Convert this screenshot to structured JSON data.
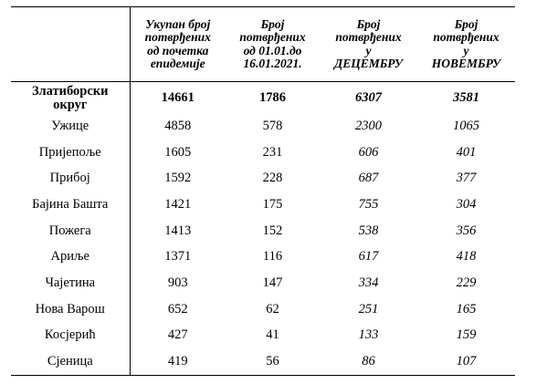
{
  "table": {
    "headers": [
      "",
      [
        "Укупан број",
        "потврђених",
        "од почетка",
        "епидемије"
      ],
      [
        "Број",
        "потврђених",
        "од 01.01.до",
        "16.01.2021."
      ],
      [
        "Број",
        "потврђених",
        "у",
        "ДЕЦЕМБРУ"
      ],
      [
        "Број",
        "потврђених",
        "у",
        "НОВЕМБРУ"
      ]
    ],
    "total": {
      "region_lines": [
        "Златиборски",
        "округ"
      ],
      "since_start": "14661",
      "jan_1_16": "1786",
      "december": "6307",
      "november": "3581"
    },
    "rows": [
      {
        "region": "Ужице",
        "since_start": "4858",
        "jan_1_16": "578",
        "december": "2300",
        "november": "1065"
      },
      {
        "region": "Пријепоље",
        "since_start": "1605",
        "jan_1_16": "231",
        "december": "606",
        "november": "401"
      },
      {
        "region": "Прибој",
        "since_start": "1592",
        "jan_1_16": "228",
        "december": "687",
        "november": "377"
      },
      {
        "region": "Бајина Башта",
        "since_start": "1421",
        "jan_1_16": "175",
        "december": "755",
        "november": "304"
      },
      {
        "region": "Пожега",
        "since_start": "1413",
        "jan_1_16": "152",
        "december": "538",
        "november": "356"
      },
      {
        "region": "Ариље",
        "since_start": "1371",
        "jan_1_16": "116",
        "december": "617",
        "november": "418"
      },
      {
        "region": "Чајетина",
        "since_start": "903",
        "jan_1_16": "147",
        "december": "334",
        "november": "229"
      },
      {
        "region": "Нова Варош",
        "since_start": "652",
        "jan_1_16": "62",
        "december": "251",
        "november": "165"
      },
      {
        "region": "Косјерић",
        "since_start": "427",
        "jan_1_16": "41",
        "december": "133",
        "november": "159"
      },
      {
        "region": "Сјеница",
        "since_start": "419",
        "jan_1_16": "56",
        "december": "86",
        "november": "107"
      }
    ]
  }
}
